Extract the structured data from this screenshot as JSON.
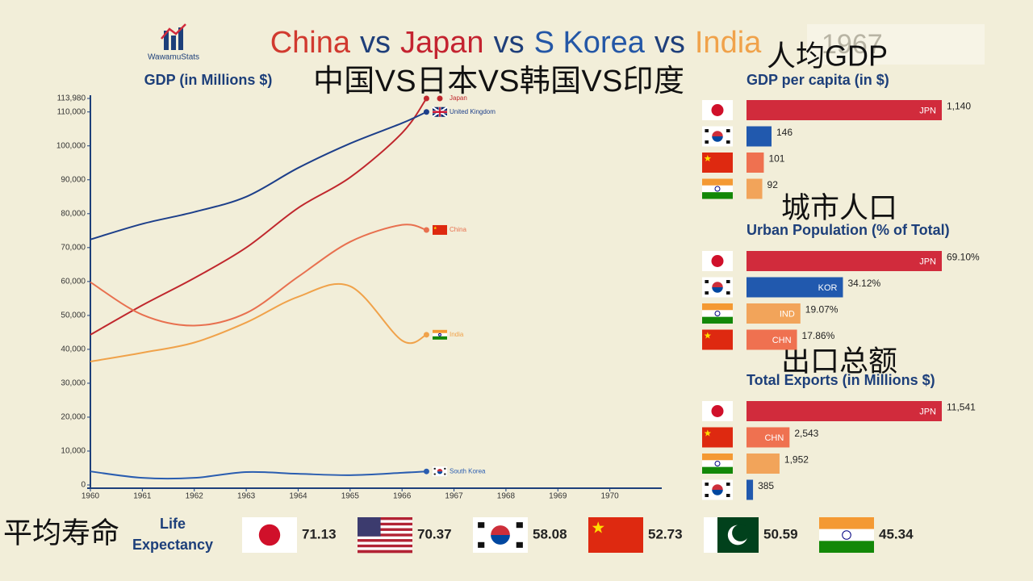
{
  "logo": "WawamuStats",
  "title_parts": [
    {
      "text": "China",
      "color": "#d13a2f"
    },
    {
      "text": "vs",
      "color": "#1f3f7a"
    },
    {
      "text": "Japan",
      "color": "#c42330"
    },
    {
      "text": "vs",
      "color": "#1f3f7a"
    },
    {
      "text": "S Korea",
      "color": "#2457a6"
    },
    {
      "text": "vs",
      "color": "#1f3f7a"
    },
    {
      "text": "India",
      "color": "#f0a24a"
    }
  ],
  "year": "1967",
  "overlays": {
    "headline": "中国VS日本VS韩国VS印度",
    "gdp_per_capita": "人均GDP",
    "urban": "城市人口",
    "exports": "出口总额",
    "life": "平均寿命"
  },
  "chart_data": [
    {
      "type": "line",
      "title": "GDP (in Millions $)",
      "x": [
        1960,
        1961,
        1962,
        1963,
        1964,
        1965,
        1966,
        1966.47
      ],
      "xlim": [
        1960,
        1971
      ],
      "xticks": [
        1960,
        1961,
        1962,
        1963,
        1964,
        1965,
        1966,
        1967,
        1968,
        1969,
        1970
      ],
      "ylim": [
        0,
        113980
      ],
      "yticks": [
        0,
        {
          "value": 10000,
          "label": "10,000"
        },
        {
          "value": 20000,
          "label": "20,000"
        },
        {
          "value": 30000,
          "label": "30,000"
        },
        {
          "value": 40000,
          "label": "40,000"
        },
        {
          "value": 50000,
          "label": "50,000"
        },
        {
          "value": 60000,
          "label": "60,000"
        },
        {
          "value": 70000,
          "label": "70,000"
        },
        {
          "value": 80000,
          "label": "80,000"
        },
        {
          "value": 90000,
          "label": "90,000"
        },
        {
          "value": 100000,
          "label": "100,000"
        },
        {
          "value": 110000,
          "label": "110,000"
        },
        {
          "value": 113980,
          "label": "113,980"
        }
      ],
      "series": [
        {
          "name": "Japan",
          "color": "#c0272d",
          "values": [
            44300,
            53000,
            61000,
            70000,
            81700,
            90700,
            103800,
            113980
          ]
        },
        {
          "name": "United Kingdom",
          "color": "#1d3f8a",
          "values": [
            72400,
            77000,
            80500,
            85000,
            93500,
            100700,
            106700,
            110000
          ]
        },
        {
          "name": "China",
          "color": "#e8704f",
          "values": [
            59800,
            50200,
            47000,
            50700,
            61400,
            71700,
            76700,
            75200
          ]
        },
        {
          "name": "India",
          "color": "#f0a24a",
          "values": [
            36400,
            39000,
            42000,
            47900,
            55500,
            58600,
            42600,
            44300
          ]
        },
        {
          "name": "South Korea",
          "color": "#2a5db0",
          "values": [
            4000,
            2100,
            2100,
            3800,
            3300,
            2900,
            3600,
            4000
          ]
        }
      ]
    },
    {
      "type": "hbar",
      "title": "GDP per capita (in $)",
      "categories": [
        "JPN",
        null,
        null,
        null
      ],
      "values": [
        1140,
        146,
        101,
        92
      ],
      "value_labels": [
        "1,140",
        "146",
        "101",
        "92"
      ],
      "colors": [
        "#d12b3c",
        "#2159ae",
        "#ef7150",
        "#f2a45a"
      ]
    },
    {
      "type": "hbar",
      "title": "Urban Population (% of Total)",
      "categories": [
        "JPN",
        "KOR",
        "IND",
        "CHN"
      ],
      "values": [
        69.1,
        34.12,
        19.07,
        17.86
      ],
      "value_labels": [
        "69.10%",
        "34.12%",
        "19.07%",
        "17.86%"
      ],
      "colors": [
        "#d12b3c",
        "#2159ae",
        "#f2a45a",
        "#ef7150"
      ]
    },
    {
      "type": "hbar",
      "title": "Total Exports (in Millions $)",
      "categories": [
        "JPN",
        "CHN",
        null,
        null
      ],
      "values": [
        11541,
        2543,
        1952,
        385
      ],
      "value_labels": [
        "11,541",
        "2,543",
        "1,952",
        "385"
      ],
      "colors": [
        "#d12b3c",
        "#ef7150",
        "#f2a45a",
        "#2159ae"
      ]
    },
    {
      "type": "flaglist",
      "title": "Life Expectancy",
      "values": [
        71.13,
        70.37,
        58.08,
        52.73,
        50.59,
        45.34
      ]
    }
  ]
}
